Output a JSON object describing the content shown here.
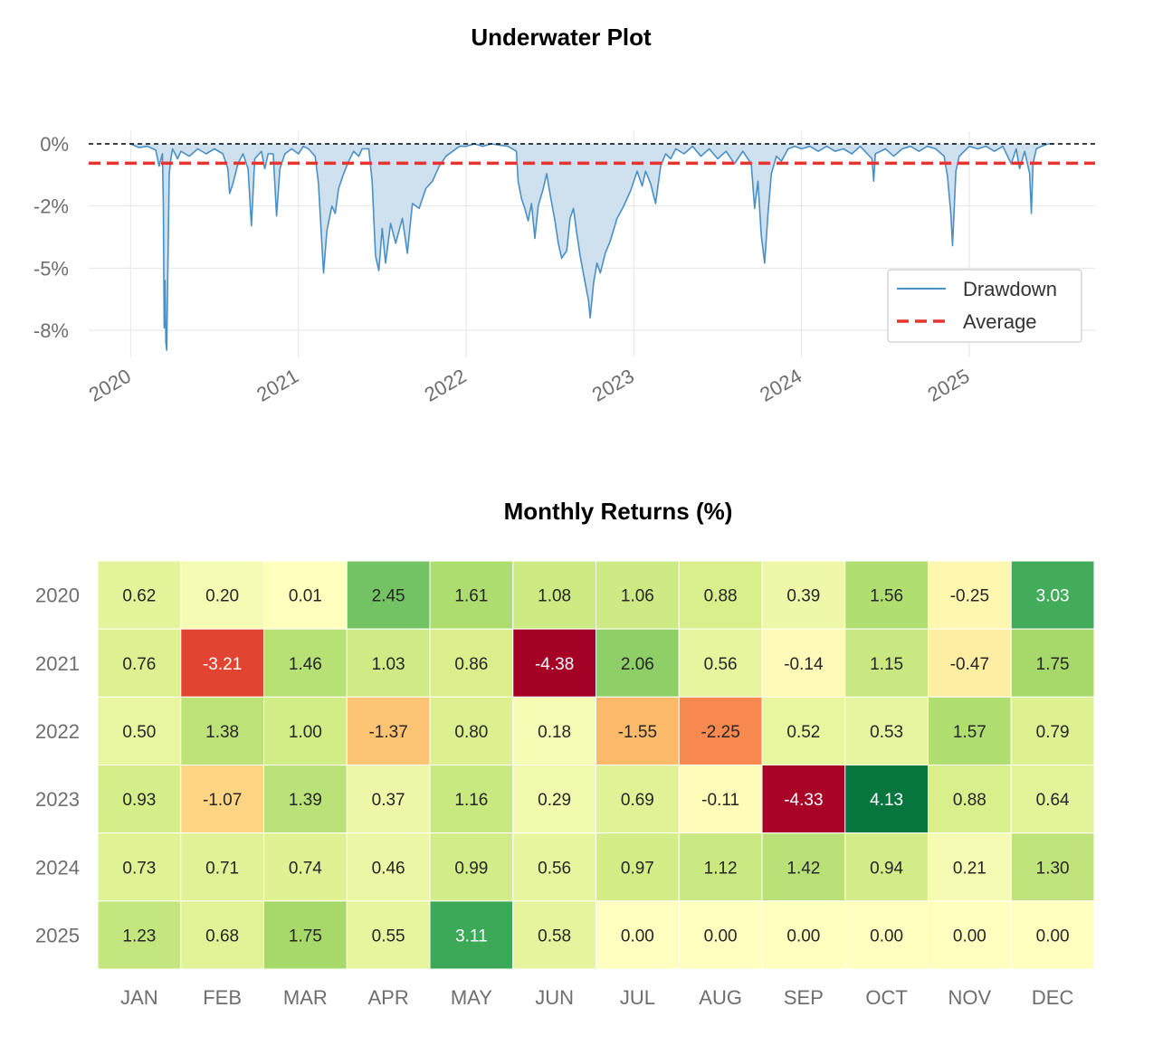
{
  "chart_data": [
    {
      "type": "area",
      "title": "Underwater Plot",
      "xlabel": "",
      "ylabel": "",
      "x_tick_labels": [
        "2020",
        "2021",
        "2022",
        "2023",
        "2024",
        "2025"
      ],
      "y_tick_labels": [
        "0%",
        "-2%",
        "-5%",
        "-8%"
      ],
      "y_tick_values": [
        0,
        -2.5,
        -5,
        -7.5
      ],
      "xlim": [
        2019.75,
        2025.75
      ],
      "ylim": [
        -8.8,
        0.3
      ],
      "legend": {
        "position": "right",
        "entries": [
          "Drawdown",
          "Average"
        ]
      },
      "reference_lines": {
        "zero": 0,
        "average": -0.78
      },
      "colors": {
        "line": "#4a90c4",
        "fill": "#cfe0ef",
        "average": "#e8342f",
        "zero": "#000000",
        "grid": "#e6e6e6"
      },
      "series": [
        {
          "name": "Drawdown",
          "points": [
            [
              2020.0,
              0
            ],
            [
              2020.05,
              -0.15
            ],
            [
              2020.1,
              -0.1
            ],
            [
              2020.15,
              -0.25
            ],
            [
              2020.17,
              -0.9
            ],
            [
              2020.19,
              -0.4
            ],
            [
              2020.195,
              -2.5
            ],
            [
              2020.2,
              -7.4
            ],
            [
              2020.205,
              -5.5
            ],
            [
              2020.21,
              -8.0
            ],
            [
              2020.215,
              -8.3
            ],
            [
              2020.22,
              -6.0
            ],
            [
              2020.23,
              -1.2
            ],
            [
              2020.24,
              -0.6
            ],
            [
              2020.25,
              -0.2
            ],
            [
              2020.28,
              -0.6
            ],
            [
              2020.3,
              -0.3
            ],
            [
              2020.35,
              -0.5
            ],
            [
              2020.4,
              -0.2
            ],
            [
              2020.45,
              -0.4
            ],
            [
              2020.5,
              -0.2
            ],
            [
              2020.55,
              -0.4
            ],
            [
              2020.58,
              -1.0
            ],
            [
              2020.59,
              -2.0
            ],
            [
              2020.61,
              -1.6
            ],
            [
              2020.64,
              -0.8
            ],
            [
              2020.67,
              -0.4
            ],
            [
              2020.7,
              -1.0
            ],
            [
              2020.72,
              -3.3
            ],
            [
              2020.74,
              -0.6
            ],
            [
              2020.78,
              -0.3
            ],
            [
              2020.8,
              -1.0
            ],
            [
              2020.82,
              -0.4
            ],
            [
              2020.85,
              -0.4
            ],
            [
              2020.87,
              -2.9
            ],
            [
              2020.89,
              -1.0
            ],
            [
              2020.92,
              -0.4
            ],
            [
              2020.96,
              -0.2
            ],
            [
              2021.0,
              -0.4
            ],
            [
              2021.03,
              -0.1
            ],
            [
              2021.06,
              -0.2
            ],
            [
              2021.1,
              -0.5
            ],
            [
              2021.12,
              -1.6
            ],
            [
              2021.14,
              -4.0
            ],
            [
              2021.15,
              -5.2
            ],
            [
              2021.17,
              -3.5
            ],
            [
              2021.2,
              -2.5
            ],
            [
              2021.22,
              -2.8
            ],
            [
              2021.24,
              -1.8
            ],
            [
              2021.27,
              -1.2
            ],
            [
              2021.3,
              -0.7
            ],
            [
              2021.33,
              -0.3
            ],
            [
              2021.36,
              -0.5
            ],
            [
              2021.38,
              -0.2
            ],
            [
              2021.42,
              -0.2
            ],
            [
              2021.44,
              -1.5
            ],
            [
              2021.46,
              -4.5
            ],
            [
              2021.48,
              -5.1
            ],
            [
              2021.5,
              -3.4
            ],
            [
              2021.52,
              -4.8
            ],
            [
              2021.55,
              -3.2
            ],
            [
              2021.58,
              -4.0
            ],
            [
              2021.62,
              -3.0
            ],
            [
              2021.65,
              -4.4
            ],
            [
              2021.68,
              -2.4
            ],
            [
              2021.72,
              -2.6
            ],
            [
              2021.76,
              -1.8
            ],
            [
              2021.8,
              -1.5
            ],
            [
              2021.84,
              -0.9
            ],
            [
              2021.88,
              -0.5
            ],
            [
              2021.92,
              -0.3
            ],
            [
              2021.96,
              -0.1
            ],
            [
              2022.0,
              -0.1
            ],
            [
              2022.05,
              0
            ],
            [
              2022.1,
              -0.1
            ],
            [
              2022.15,
              0
            ],
            [
              2022.2,
              -0.05
            ],
            [
              2022.25,
              -0.1
            ],
            [
              2022.3,
              -0.3
            ],
            [
              2022.31,
              -1.5
            ],
            [
              2022.33,
              -2.2
            ],
            [
              2022.35,
              -2.6
            ],
            [
              2022.37,
              -3.1
            ],
            [
              2022.39,
              -2.4
            ],
            [
              2022.41,
              -3.8
            ],
            [
              2022.43,
              -2.5
            ],
            [
              2022.46,
              -1.8
            ],
            [
              2022.48,
              -1.2
            ],
            [
              2022.5,
              -2.0
            ],
            [
              2022.53,
              -3.1
            ],
            [
              2022.55,
              -4.0
            ],
            [
              2022.57,
              -4.6
            ],
            [
              2022.6,
              -4.3
            ],
            [
              2022.62,
              -3.0
            ],
            [
              2022.64,
              -2.6
            ],
            [
              2022.66,
              -3.6
            ],
            [
              2022.68,
              -4.5
            ],
            [
              2022.71,
              -5.6
            ],
            [
              2022.73,
              -6.3
            ],
            [
              2022.74,
              -7.0
            ],
            [
              2022.76,
              -5.6
            ],
            [
              2022.78,
              -4.8
            ],
            [
              2022.8,
              -5.2
            ],
            [
              2022.83,
              -4.4
            ],
            [
              2022.86,
              -3.9
            ],
            [
              2022.9,
              -3.0
            ],
            [
              2022.94,
              -2.5
            ],
            [
              2022.98,
              -1.9
            ],
            [
              2023.02,
              -1.1
            ],
            [
              2023.05,
              -1.7
            ],
            [
              2023.07,
              -1.1
            ],
            [
              2023.1,
              -1.6
            ],
            [
              2023.13,
              -2.4
            ],
            [
              2023.16,
              -0.9
            ],
            [
              2023.19,
              -0.4
            ],
            [
              2023.22,
              -0.6
            ],
            [
              2023.25,
              -0.2
            ],
            [
              2023.3,
              -0.4
            ],
            [
              2023.35,
              -0.1
            ],
            [
              2023.4,
              -0.5
            ],
            [
              2023.45,
              -0.2
            ],
            [
              2023.5,
              -0.6
            ],
            [
              2023.55,
              -0.3
            ],
            [
              2023.6,
              -0.8
            ],
            [
              2023.65,
              -0.3
            ],
            [
              2023.7,
              -0.8
            ],
            [
              2023.72,
              -2.6
            ],
            [
              2023.74,
              -1.5
            ],
            [
              2023.76,
              -3.7
            ],
            [
              2023.78,
              -4.8
            ],
            [
              2023.8,
              -2.8
            ],
            [
              2023.82,
              -1.2
            ],
            [
              2023.85,
              -0.5
            ],
            [
              2023.88,
              -0.7
            ],
            [
              2023.92,
              -0.2
            ],
            [
              2023.96,
              -0.1
            ],
            [
              2024.0,
              -0.2
            ],
            [
              2024.05,
              -0.1
            ],
            [
              2024.1,
              -0.3
            ],
            [
              2024.15,
              -0.1
            ],
            [
              2024.2,
              -0.3
            ],
            [
              2024.25,
              -0.2
            ],
            [
              2024.3,
              -0.4
            ],
            [
              2024.35,
              -0.1
            ],
            [
              2024.42,
              -0.6
            ],
            [
              2024.43,
              -1.5
            ],
            [
              2024.44,
              -0.4
            ],
            [
              2024.5,
              -0.2
            ],
            [
              2024.55,
              -0.5
            ],
            [
              2024.6,
              -0.2
            ],
            [
              2024.65,
              -0.1
            ],
            [
              2024.7,
              -0.3
            ],
            [
              2024.75,
              -0.1
            ],
            [
              2024.8,
              -0.2
            ],
            [
              2024.85,
              -0.5
            ],
            [
              2024.87,
              -1.3
            ],
            [
              2024.89,
              -2.8
            ],
            [
              2024.9,
              -4.1
            ],
            [
              2024.92,
              -1.1
            ],
            [
              2024.94,
              -0.5
            ],
            [
              2024.97,
              -0.3
            ],
            [
              2025.0,
              -0.1
            ],
            [
              2025.05,
              -0.2
            ],
            [
              2025.1,
              -0.1
            ],
            [
              2025.15,
              -0.3
            ],
            [
              2025.2,
              -0.1
            ],
            [
              2025.25,
              -0.8
            ],
            [
              2025.28,
              -0.2
            ],
            [
              2025.3,
              -1.0
            ],
            [
              2025.33,
              -0.3
            ],
            [
              2025.36,
              -1.2
            ],
            [
              2025.37,
              -2.8
            ],
            [
              2025.38,
              -0.8
            ],
            [
              2025.4,
              -0.2
            ],
            [
              2025.43,
              -0.1
            ],
            [
              2025.47,
              0
            ],
            [
              2025.5,
              0
            ]
          ]
        },
        {
          "name": "Average",
          "value": -0.78
        }
      ]
    },
    {
      "type": "heatmap",
      "title": "Monthly Returns (%)",
      "xlabel": "",
      "ylabel": "",
      "columns": [
        "JAN",
        "FEB",
        "MAR",
        "APR",
        "MAY",
        "JUN",
        "JUL",
        "AUG",
        "SEP",
        "OCT",
        "NOV",
        "DEC"
      ],
      "rows": [
        "2020",
        "2021",
        "2022",
        "2023",
        "2024",
        "2025"
      ],
      "values": [
        [
          "0.62",
          "0.20",
          "0.01",
          "2.45",
          "1.61",
          "1.08",
          "1.06",
          "0.88",
          "0.39",
          "1.56",
          "-0.25",
          "3.03"
        ],
        [
          "0.76",
          "-3.21",
          "1.46",
          "1.03",
          "0.86",
          "-4.38",
          "2.06",
          "0.56",
          "-0.14",
          "1.15",
          "-0.47",
          "1.75"
        ],
        [
          "0.50",
          "1.38",
          "1.00",
          "-1.37",
          "0.80",
          "0.18",
          "-1.55",
          "-2.25",
          "0.52",
          "0.53",
          "1.57",
          "0.79"
        ],
        [
          "0.93",
          "-1.07",
          "1.39",
          "0.37",
          "1.16",
          "0.29",
          "0.69",
          "-0.11",
          "-4.33",
          "4.13",
          "0.88",
          "0.64"
        ],
        [
          "0.73",
          "0.71",
          "0.74",
          "0.46",
          "0.99",
          "0.56",
          "0.97",
          "1.12",
          "1.42",
          "0.94",
          "0.21",
          "1.30"
        ],
        [
          "1.23",
          "0.68",
          "1.75",
          "0.55",
          "3.11",
          "0.58",
          "0.00",
          "0.00",
          "0.00",
          "0.00",
          "0.00",
          "0.00"
        ]
      ],
      "color_range": [
        -4.38,
        4.38
      ],
      "colormap": "RdYlGn"
    }
  ]
}
